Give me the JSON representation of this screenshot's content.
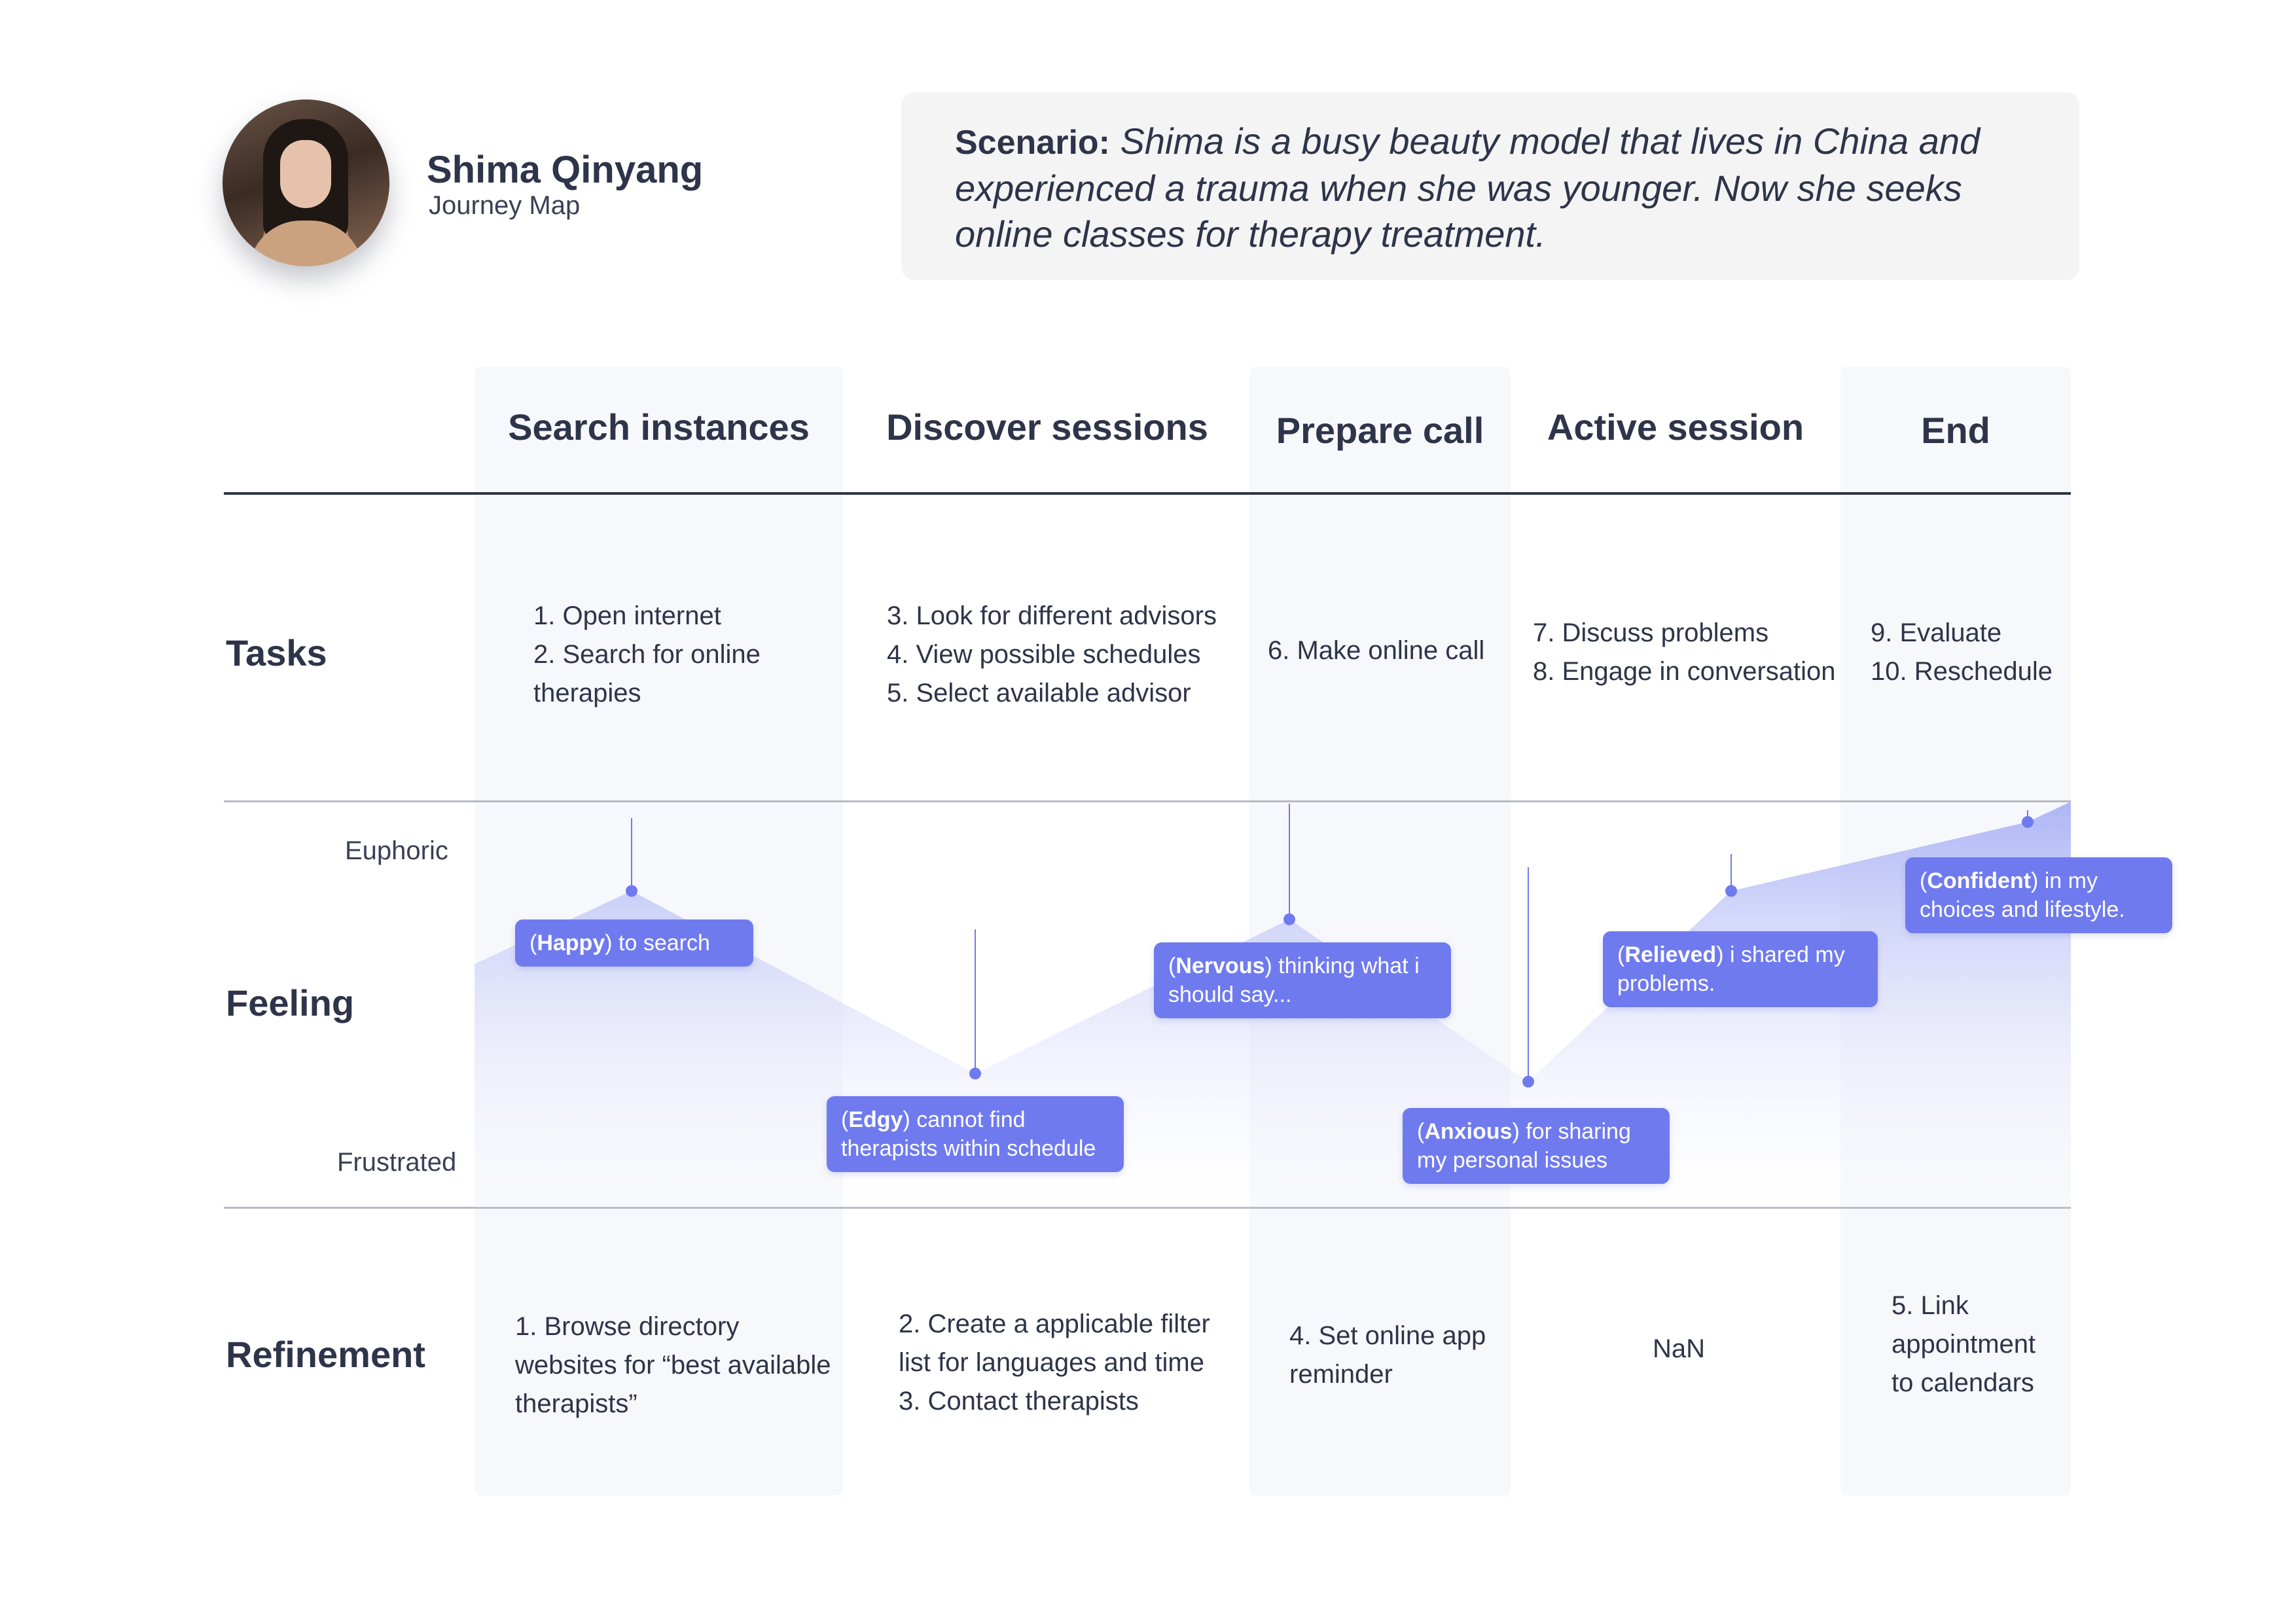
{
  "persona": {
    "name": "Shima Qinyang",
    "subtitle": "Journey Map"
  },
  "scenario": {
    "label": "Scenario:",
    "text": "Shima is a busy beauty model that lives in China and experienced a trauma when she was younger. Now she seeks online classes for therapy treatment."
  },
  "colors": {
    "accent": "#6f7aef",
    "text": "#2e3449",
    "band": "#f7f8fb",
    "rule": "#b8bac2"
  },
  "stages": [
    "Search instances",
    "Discover sessions",
    "Prepare call",
    "Active session",
    "End"
  ],
  "rows": {
    "tasks": "Tasks",
    "feeling": "Feeling",
    "refinement": "Refinement"
  },
  "feeling_scale": {
    "high": "Euphoric",
    "low": "Frustrated"
  },
  "tasks": [
    [
      "1. Open internet",
      "2. Search for online",
      "therapies"
    ],
    [
      "3. Look for different advisors",
      "4. View possible schedules",
      "5. Select available advisor"
    ],
    [
      "6. Make online call"
    ],
    [
      "7.  Discuss problems",
      "8. Engage in conversation"
    ],
    [
      "9. Evaluate",
      "10. Reschedule"
    ]
  ],
  "refinement": [
    [
      "1. Browse directory",
      "websites for “best available",
      "therapists”"
    ],
    [
      "2. Create a applicable filter",
      "list for languages and time",
      "3. Contact therapists"
    ],
    [
      "4. Set online app",
      "reminder"
    ],
    [
      "NaN"
    ],
    [
      "5. Link",
      "appointment",
      "to calendars"
    ]
  ],
  "chart_data": {
    "type": "area",
    "y_scale": [
      "Frustrated",
      "Euphoric"
    ],
    "ylim": [
      0,
      100
    ],
    "points": [
      {
        "emotion": "Happy",
        "text": " to search",
        "level": 78
      },
      {
        "emotion": "Edgy",
        "text": " cannot find therapists within schedule",
        "level": 33
      },
      {
        "emotion": "Nervous",
        "text": " thinking what i should say...",
        "level": 71
      },
      {
        "emotion": "Anxious",
        "text": " for sharing my personal issues",
        "level": 31
      },
      {
        "emotion": "Relieved",
        "text": " i shared my problems.",
        "level": 78
      },
      {
        "emotion": "Confident",
        "text": " in my choices and lifestyle.",
        "level": 95
      }
    ]
  }
}
